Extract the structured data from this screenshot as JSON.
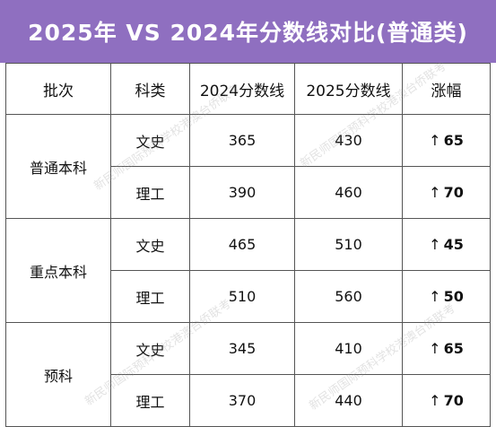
{
  "title": "2025年 VS 2024年分数线对比(普通类)",
  "colors": {
    "title_bg": "#8f6fc0",
    "rise": "#d91e1e",
    "border": "#555555"
  },
  "table": {
    "headers": [
      "批次",
      "科类",
      "2024分数线",
      "2025分数线",
      "涨幅"
    ],
    "groups": [
      {
        "batch": "普通本科",
        "rows": [
          {
            "subject": "文史",
            "y2024": "365",
            "y2025": "430",
            "rise": "65"
          },
          {
            "subject": "理工",
            "y2024": "390",
            "y2025": "460",
            "rise": "70"
          }
        ]
      },
      {
        "batch": "重点本科",
        "rows": [
          {
            "subject": "文史",
            "y2024": "465",
            "y2025": "510",
            "rise": "45"
          },
          {
            "subject": "理工",
            "y2024": "510",
            "y2025": "560",
            "rise": "50"
          }
        ]
      },
      {
        "batch": "预科",
        "rows": [
          {
            "subject": "文史",
            "y2024": "345",
            "y2025": "410",
            "rise": "65"
          },
          {
            "subject": "理工",
            "y2024": "370",
            "y2025": "440",
            "rise": "70"
          }
        ]
      }
    ],
    "rise_arrow": "↑"
  },
  "watermark": "新民师国际预科学校港澳台侨联考"
}
